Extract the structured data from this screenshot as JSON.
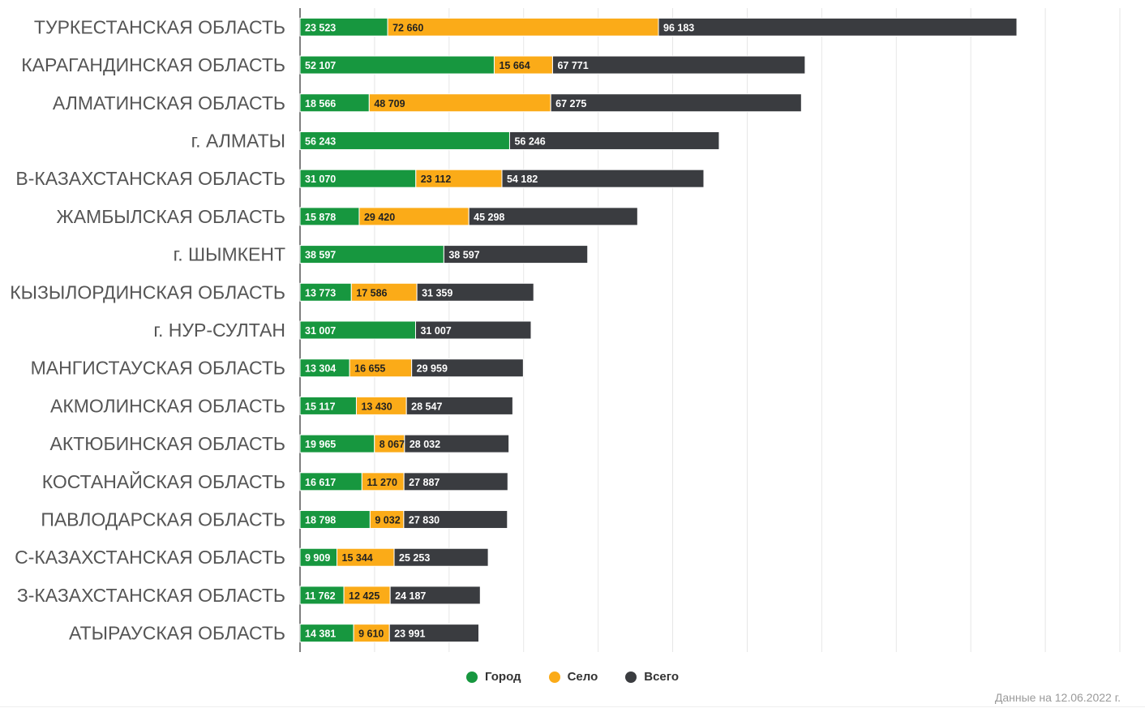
{
  "chart_data": {
    "type": "bar",
    "orientation": "horizontal",
    "stacked": true,
    "categories": [
      "ТУРКЕСТАНСКАЯ ОБЛАСТЬ",
      "КАРАГАНДИНСКАЯ ОБЛАСТЬ",
      "АЛМАТИНСКАЯ ОБЛАСТЬ",
      "г. АЛМАТЫ",
      "В-КАЗАХСТАНСКАЯ ОБЛАСТЬ",
      "ЖАМБЫЛСКАЯ ОБЛАСТЬ",
      "г. ШЫМКЕНТ",
      "КЫЗЫЛОРДИНСКАЯ ОБЛАСТЬ",
      "г. НУР-СУЛТАН",
      "МАНГИСТАУСКАЯ ОБЛАСТЬ",
      "АКМОЛИНСКАЯ ОБЛАСТЬ",
      "АКТЮБИНСКАЯ ОБЛАСТЬ",
      "КОСТАНАЙСКАЯ ОБЛАСТЬ",
      "ПАВЛОДАРСКАЯ ОБЛАСТЬ",
      "С-КАЗАХСТАНСКАЯ ОБЛАСТЬ",
      "З-КАЗАХСТАНСКАЯ ОБЛАСТЬ",
      "АТЫРАУСКАЯ ОБЛАСТЬ"
    ],
    "series": [
      {
        "name": "Город",
        "color": "#17973f",
        "values": [
          23523,
          52107,
          18566,
          56243,
          31070,
          15878,
          38597,
          13773,
          31007,
          13304,
          15117,
          19965,
          16617,
          18798,
          9909,
          11762,
          14381
        ]
      },
      {
        "name": "Село",
        "color": "#fbab18",
        "values": [
          72660,
          15664,
          48709,
          null,
          23112,
          29420,
          null,
          17586,
          null,
          16655,
          13430,
          8067,
          11270,
          9032,
          15344,
          12425,
          9610
        ]
      },
      {
        "name": "Всего",
        "color": "#3a3c40",
        "values": [
          96183,
          67771,
          67275,
          56246,
          54182,
          45298,
          38597,
          31359,
          31007,
          29959,
          28547,
          28032,
          27887,
          27830,
          25253,
          24187,
          23991
        ]
      }
    ],
    "xlim": [
      0,
      220000
    ],
    "grid": true,
    "legend": "bottom-center"
  },
  "footnote": "Данные на 12.06.2022 г."
}
